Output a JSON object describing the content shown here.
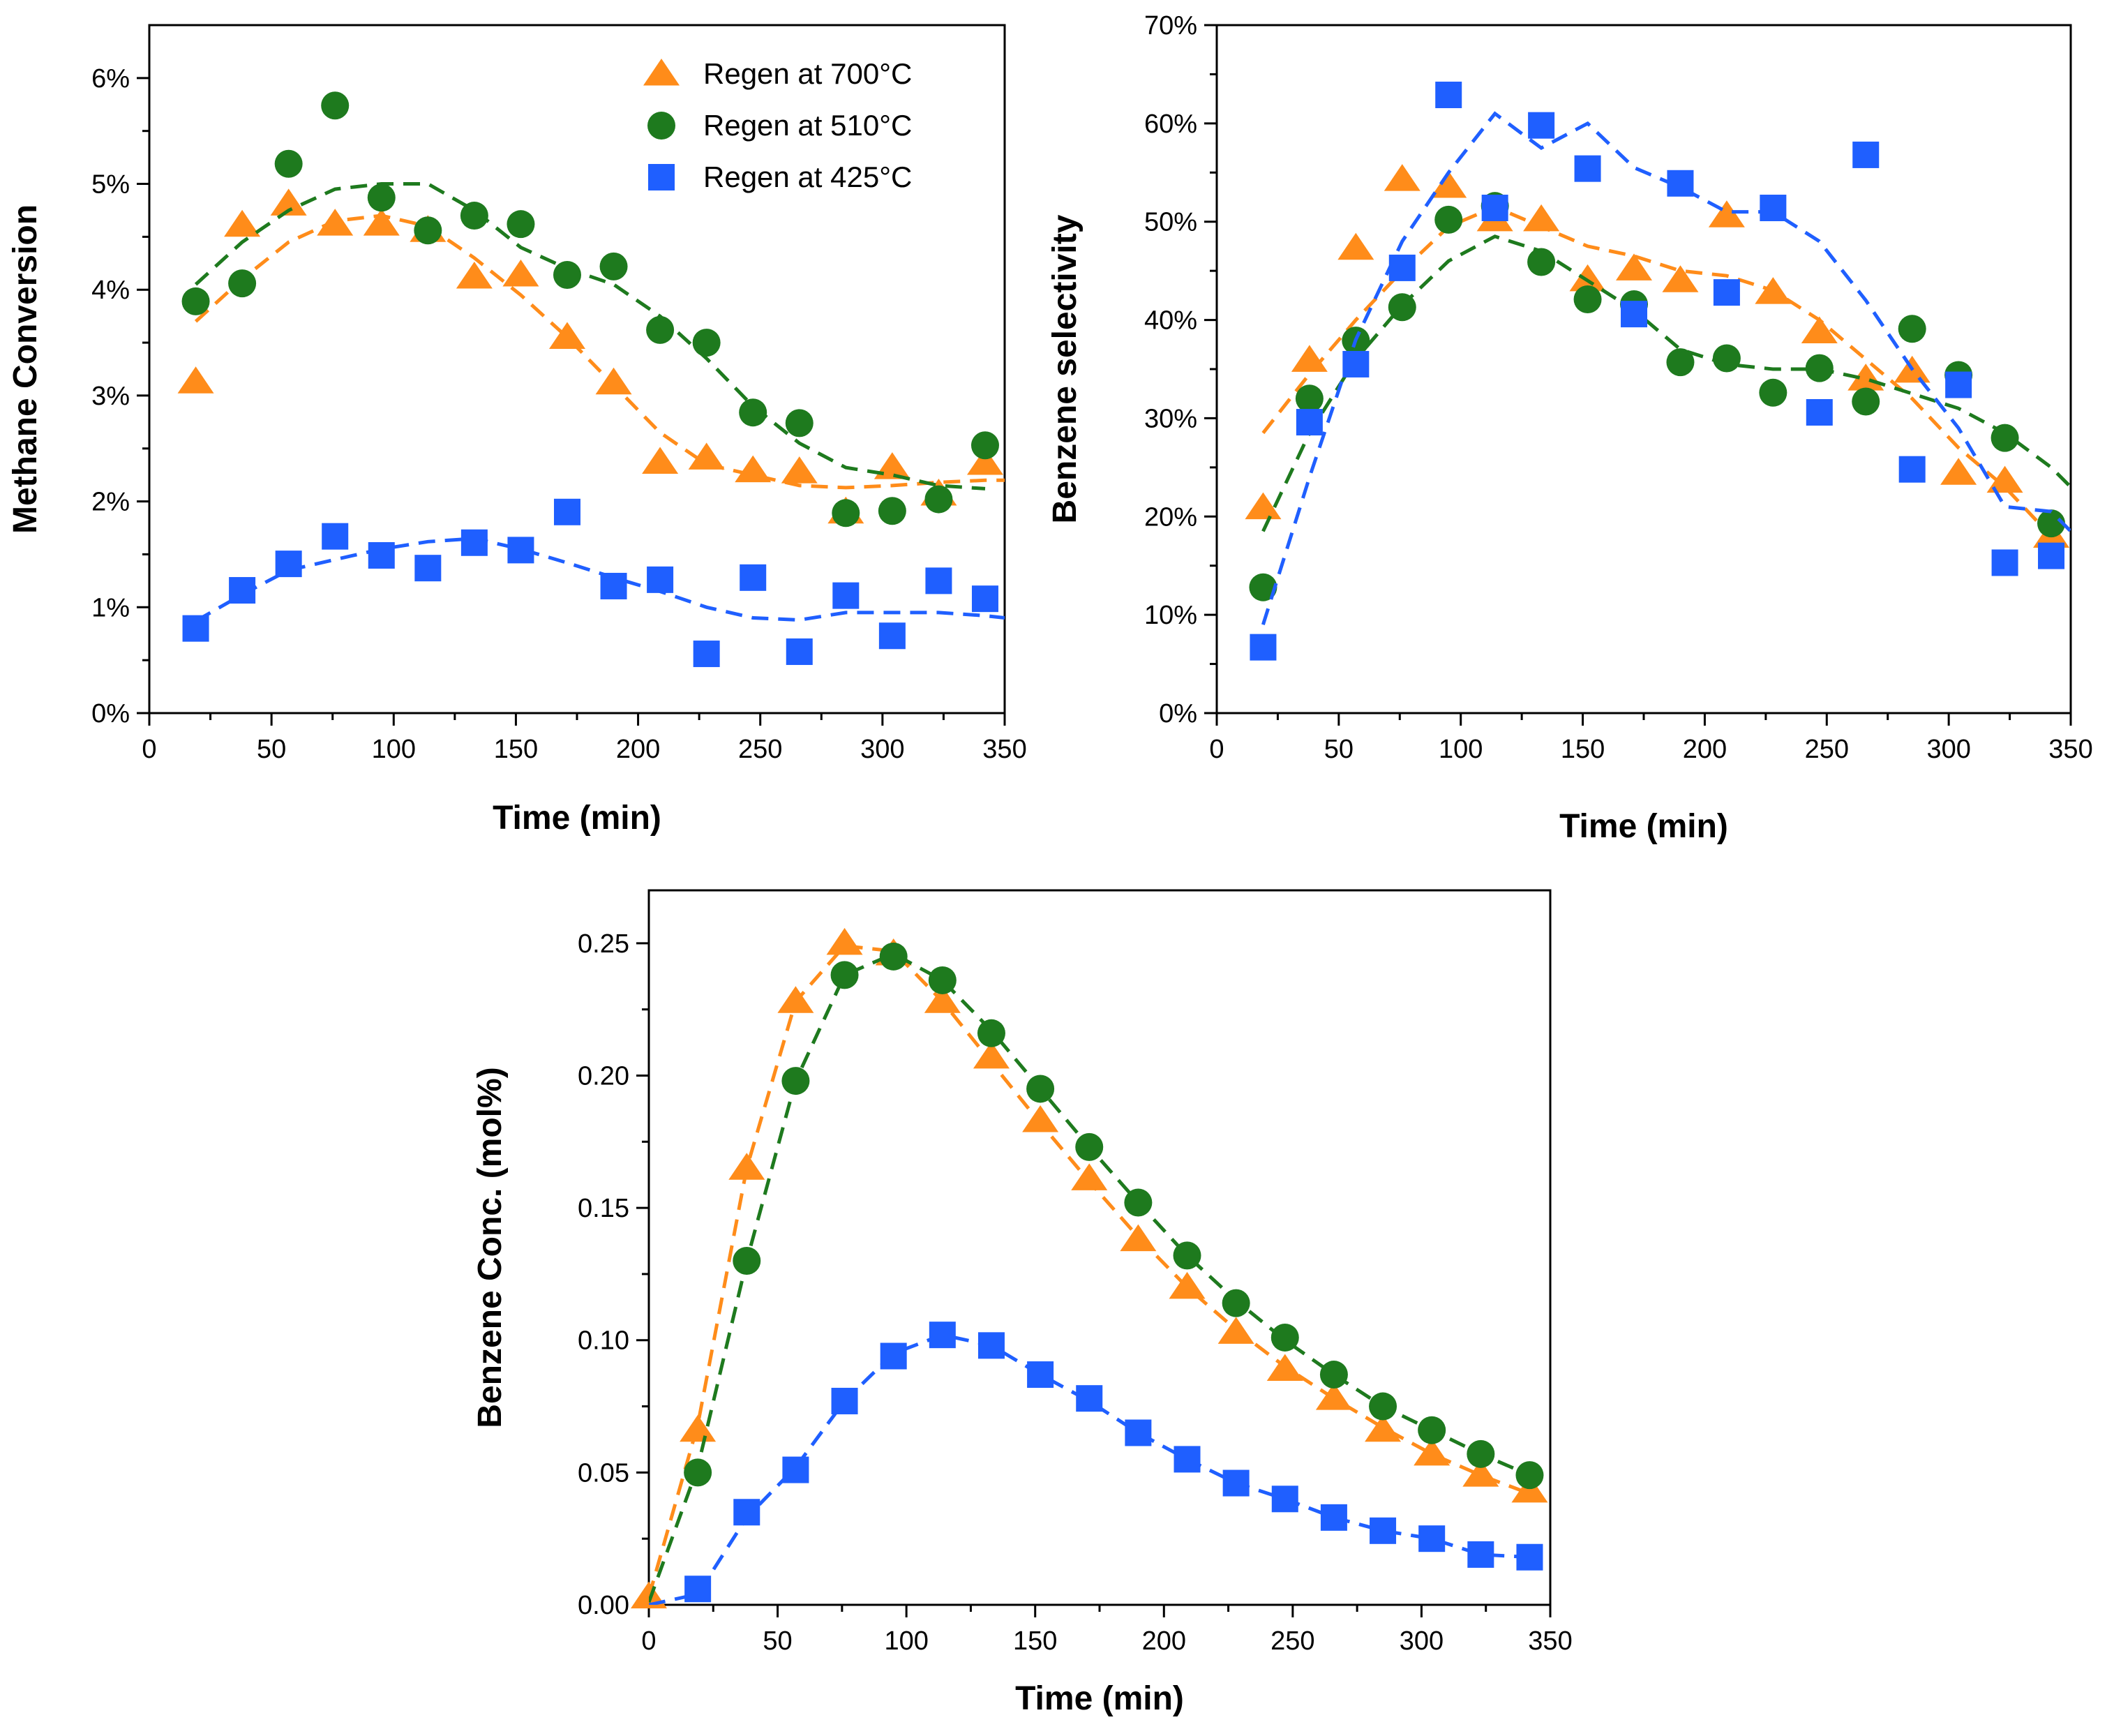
{
  "chart_data": [
    {
      "id": "methane",
      "type": "scatter",
      "xlabel": "Time (min)",
      "ylabel": "Methane Conversion",
      "xlim": [
        0,
        350
      ],
      "ylim": [
        0,
        6.5
      ],
      "xticks": [
        0,
        50,
        100,
        150,
        200,
        250,
        300,
        350
      ],
      "yticks": [
        0,
        1,
        2,
        3,
        4,
        5,
        6
      ],
      "y_format": "percent",
      "legend": "top-right",
      "series": [
        {
          "name": "Regen at 700°C",
          "color": "#ff8c1a",
          "marker": "triangle",
          "x": [
            19,
            38,
            57,
            76,
            95,
            114,
            133,
            152,
            171,
            190,
            209,
            228,
            247,
            266,
            285,
            304,
            323,
            342
          ],
          "y": [
            3.13,
            4.61,
            4.81,
            4.62,
            4.62,
            4.56,
            4.12,
            4.14,
            3.55,
            3.12,
            2.37,
            2.41,
            2.29,
            2.28,
            1.9,
            2.32,
            2.07,
            2.36
          ],
          "fit_x": [
            19,
            38,
            57,
            76,
            95,
            114,
            133,
            152,
            171,
            190,
            209,
            228,
            247,
            266,
            285,
            304,
            323,
            342,
            350
          ],
          "fit_y": [
            3.7,
            4.1,
            4.45,
            4.65,
            4.7,
            4.6,
            4.3,
            3.95,
            3.55,
            3.1,
            2.65,
            2.35,
            2.25,
            2.15,
            2.13,
            2.15,
            2.18,
            2.2,
            2.2
          ]
        },
        {
          "name": "Regen at 510°C",
          "color": "#1e7a1e",
          "marker": "circle",
          "x": [
            19,
            38,
            57,
            76,
            95,
            114,
            133,
            152,
            171,
            190,
            209,
            228,
            247,
            266,
            285,
            304,
            323,
            342
          ],
          "y": [
            3.89,
            4.06,
            5.19,
            5.74,
            4.87,
            4.56,
            4.7,
            4.62,
            4.14,
            4.22,
            3.62,
            3.5,
            2.84,
            2.74,
            1.89,
            1.91,
            2.02,
            2.53
          ],
          "fit_x": [
            19,
            38,
            57,
            76,
            95,
            114,
            133,
            152,
            171,
            190,
            209,
            228,
            247,
            266,
            285,
            304,
            323,
            342
          ],
          "fit_y": [
            4.05,
            4.45,
            4.75,
            4.95,
            5.0,
            5.0,
            4.75,
            4.4,
            4.2,
            4.05,
            3.75,
            3.35,
            2.9,
            2.55,
            2.32,
            2.25,
            2.15,
            2.12
          ]
        },
        {
          "name": "Regen at 425°C",
          "color": "#1f5fff",
          "marker": "square",
          "x": [
            19,
            38,
            57,
            76,
            95,
            114,
            133,
            152,
            171,
            190,
            209,
            228,
            247,
            266,
            285,
            304,
            323,
            342
          ],
          "y": [
            0.8,
            1.16,
            1.41,
            1.67,
            1.49,
            1.37,
            1.61,
            1.54,
            1.9,
            1.2,
            1.26,
            0.56,
            1.28,
            0.58,
            1.11,
            0.73,
            1.25,
            1.08
          ],
          "fit_x": [
            19,
            38,
            57,
            76,
            95,
            114,
            133,
            152,
            171,
            190,
            209,
            228,
            247,
            266,
            285,
            304,
            323,
            342,
            350
          ],
          "fit_y": [
            0.87,
            1.12,
            1.35,
            1.45,
            1.55,
            1.62,
            1.65,
            1.55,
            1.42,
            1.28,
            1.15,
            1.0,
            0.9,
            0.88,
            0.95,
            0.95,
            0.95,
            0.92,
            0.9
          ]
        }
      ]
    },
    {
      "id": "selectivity",
      "type": "scatter",
      "xlabel": "Time (min)",
      "ylabel": "Benzene selectivity",
      "xlim": [
        0,
        350
      ],
      "ylim": [
        0,
        70
      ],
      "xticks": [
        0,
        50,
        100,
        150,
        200,
        250,
        300,
        350
      ],
      "yticks": [
        0,
        10,
        20,
        30,
        40,
        50,
        60,
        70
      ],
      "y_format": "percent",
      "series": [
        {
          "name": "Regen at 700°C",
          "color": "#ff8c1a",
          "marker": "triangle",
          "x": [
            19,
            38,
            57,
            76,
            95,
            114,
            133,
            152,
            171,
            190,
            209,
            228,
            247,
            266,
            285,
            304,
            323,
            342
          ],
          "y": [
            20.9,
            35.9,
            47.3,
            54.3,
            53.6,
            50.2,
            50.2,
            44.1,
            45.2,
            44.0,
            50.6,
            42.8,
            38.8,
            34.0,
            34.8,
            24.4,
            23.6,
            18.0
          ],
          "fit_x": [
            19,
            38,
            57,
            76,
            95,
            114,
            133,
            152,
            171,
            190,
            209,
            228,
            247,
            266,
            285,
            304,
            323,
            342
          ],
          "fit_y": [
            28.5,
            34.5,
            40.0,
            45.0,
            49.5,
            51.5,
            49.5,
            47.5,
            46.5,
            45.0,
            44.5,
            43.0,
            40.0,
            36.0,
            32.0,
            27.0,
            23.0,
            18.0
          ]
        },
        {
          "name": "Regen at 510°C",
          "color": "#1e7a1e",
          "marker": "circle",
          "x": [
            19,
            38,
            57,
            76,
            95,
            114,
            133,
            152,
            171,
            190,
            209,
            228,
            247,
            266,
            285,
            304,
            323,
            342
          ],
          "y": [
            12.8,
            32.0,
            37.9,
            41.3,
            50.2,
            51.6,
            45.9,
            42.1,
            41.6,
            35.7,
            36.1,
            32.6,
            35.1,
            31.7,
            39.1,
            34.4,
            28.0,
            19.3
          ],
          "fit_x": [
            19,
            38,
            57,
            76,
            95,
            114,
            133,
            152,
            171,
            190,
            209,
            228,
            247,
            266,
            285,
            304,
            323,
            342,
            350
          ],
          "fit_y": [
            18.5,
            28.5,
            36.0,
            41.5,
            46.0,
            48.5,
            47.0,
            44.0,
            41.0,
            37.0,
            35.5,
            35.0,
            35.0,
            34.0,
            32.5,
            31.0,
            28.5,
            25.0,
            23.0
          ]
        },
        {
          "name": "Regen at 425°C",
          "color": "#1f5fff",
          "marker": "square",
          "x": [
            19,
            38,
            57,
            76,
            95,
            114,
            133,
            152,
            171,
            190,
            209,
            228,
            247,
            266,
            285,
            304,
            323,
            342
          ],
          "y": [
            6.7,
            29.6,
            35.5,
            45.3,
            62.9,
            51.4,
            59.8,
            55.4,
            40.6,
            53.9,
            42.8,
            51.4,
            30.6,
            56.8,
            24.8,
            33.4,
            15.3,
            16.0
          ],
          "fit_x": [
            19,
            38,
            57,
            76,
            95,
            114,
            133,
            152,
            171,
            190,
            209,
            228,
            247,
            266,
            285,
            304,
            323,
            342,
            350
          ],
          "fit_y": [
            9.0,
            24.0,
            38.0,
            48.0,
            55.0,
            61.0,
            57.5,
            60.0,
            55.5,
            53.5,
            51.0,
            51.0,
            48.0,
            42.0,
            35.0,
            29.0,
            21.0,
            20.5,
            18.5
          ]
        }
      ]
    },
    {
      "id": "concentration",
      "type": "scatter",
      "xlabel": "Time (min)",
      "ylabel": "Benzene Conc. (mol%)",
      "xlim": [
        0,
        350
      ],
      "ylim": [
        0,
        0.27
      ],
      "xticks": [
        0,
        50,
        100,
        150,
        200,
        250,
        300,
        350
      ],
      "yticks": [
        0,
        0.05,
        0.1,
        0.15,
        0.2,
        0.25
      ],
      "y_format": "decimal2",
      "series": [
        {
          "name": "Regen at 700°C",
          "color": "#ff8c1a",
          "marker": "triangle",
          "x": [
            0,
            19,
            38,
            57,
            76,
            95,
            114,
            133,
            152,
            171,
            190,
            209,
            228,
            247,
            266,
            285,
            304,
            323,
            342
          ],
          "y": [
            0.003,
            0.066,
            0.165,
            0.228,
            0.25,
            0.246,
            0.228,
            0.207,
            0.183,
            0.161,
            0.138,
            0.12,
            0.103,
            0.089,
            0.078,
            0.066,
            0.057,
            0.049,
            0.043
          ],
          "fit_x": [
            0,
            19,
            38,
            57,
            76,
            95,
            114,
            133,
            152,
            171,
            190,
            209,
            228,
            247,
            266,
            285,
            304,
            323,
            342
          ],
          "fit_y": [
            0.003,
            0.068,
            0.165,
            0.228,
            0.249,
            0.247,
            0.228,
            0.205,
            0.182,
            0.16,
            0.139,
            0.12,
            0.104,
            0.09,
            0.078,
            0.067,
            0.057,
            0.049,
            0.042
          ]
        },
        {
          "name": "Regen at 510°C",
          "color": "#1e7a1e",
          "marker": "circle",
          "x": [
            19,
            38,
            57,
            76,
            95,
            114,
            133,
            152,
            171,
            190,
            209,
            228,
            247,
            266,
            285,
            304,
            323,
            342
          ],
          "y": [
            0.05,
            0.13,
            0.198,
            0.238,
            0.245,
            0.236,
            0.216,
            0.195,
            0.173,
            0.152,
            0.132,
            0.114,
            0.101,
            0.087,
            0.075,
            0.066,
            0.057,
            0.049
          ],
          "fit_x": [
            0,
            19,
            38,
            57,
            76,
            95,
            114,
            133,
            152,
            171,
            190,
            209,
            228,
            247,
            266,
            285,
            304,
            323,
            342
          ],
          "fit_y": [
            0.001,
            0.052,
            0.13,
            0.198,
            0.238,
            0.246,
            0.236,
            0.217,
            0.195,
            0.173,
            0.152,
            0.132,
            0.115,
            0.1,
            0.087,
            0.075,
            0.066,
            0.057,
            0.049
          ]
        },
        {
          "name": "Regen at 425°C",
          "color": "#1f5fff",
          "marker": "square",
          "x": [
            19,
            38,
            57,
            76,
            95,
            114,
            133,
            152,
            171,
            190,
            209,
            228,
            247,
            266,
            285,
            304,
            323,
            342
          ],
          "y": [
            0.006,
            0.035,
            0.051,
            0.077,
            0.094,
            0.102,
            0.098,
            0.087,
            0.078,
            0.065,
            0.055,
            0.046,
            0.04,
            0.033,
            0.028,
            0.025,
            0.019,
            0.018
          ],
          "fit_x": [
            0,
            19,
            38,
            57,
            76,
            95,
            114,
            133,
            152,
            171,
            190,
            209,
            228,
            247,
            266,
            285,
            304,
            323,
            342
          ],
          "fit_y": [
            0.0,
            0.004,
            0.033,
            0.052,
            0.077,
            0.095,
            0.102,
            0.098,
            0.087,
            0.077,
            0.065,
            0.055,
            0.046,
            0.04,
            0.033,
            0.028,
            0.025,
            0.019,
            0.018
          ]
        }
      ]
    }
  ]
}
